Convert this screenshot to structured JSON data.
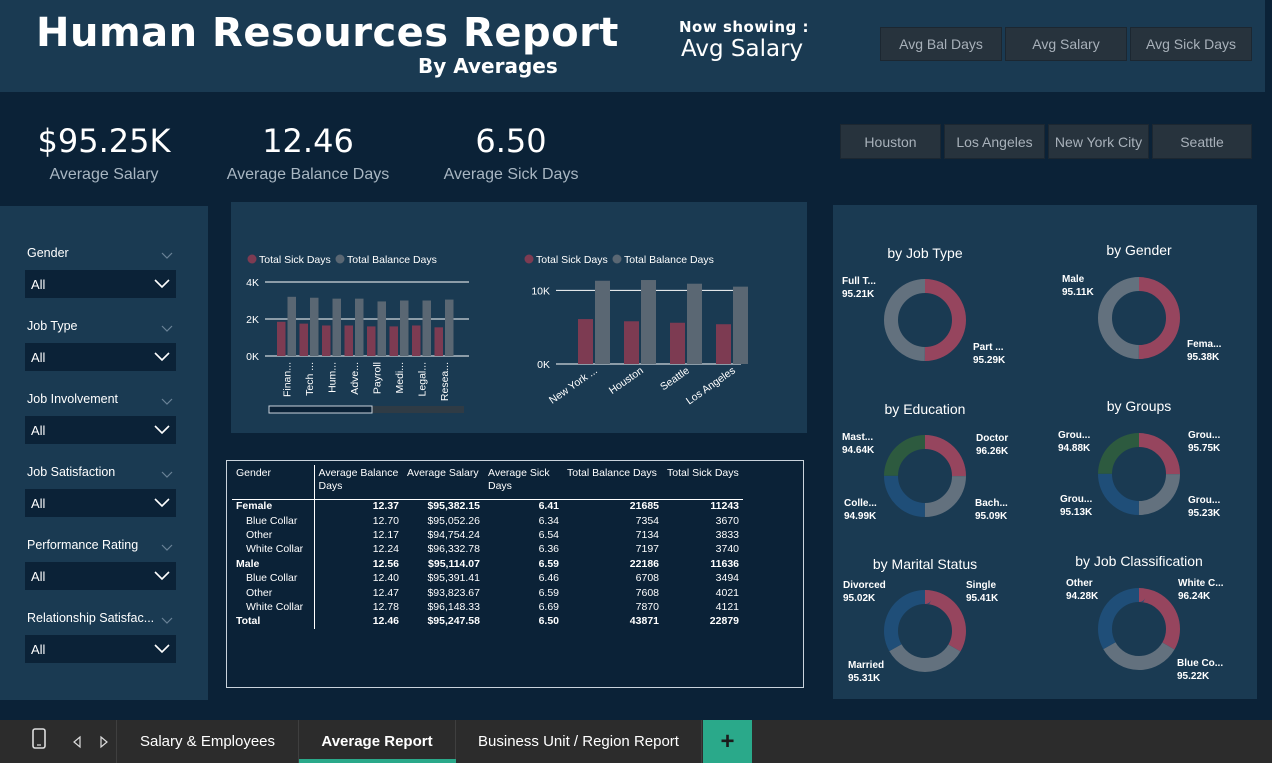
{
  "header": {
    "title": "Human Resources Report",
    "subtitle": "By Averages",
    "now_label": "Now showing :",
    "now_value": "Avg Salary",
    "metric_buttons": [
      "Avg Bal Days",
      "Avg Salary",
      "Avg Sick Days"
    ]
  },
  "kpis": [
    {
      "value": "$95.25K",
      "label": "Average Salary"
    },
    {
      "value": "12.46",
      "label": "Average Balance Days"
    },
    {
      "value": "6.50",
      "label": "Average Sick Days"
    }
  ],
  "city_buttons": [
    "Houston",
    "Los Angeles",
    "New York City",
    "Seattle"
  ],
  "filters": [
    {
      "label": "Gender",
      "value": "All"
    },
    {
      "label": "Job Type",
      "value": "All"
    },
    {
      "label": "Job Involvement",
      "value": "All"
    },
    {
      "label": "Job Satisfaction",
      "value": "All"
    },
    {
      "label": "Performance Rating",
      "value": "All"
    },
    {
      "label": "Relationship Satisfac...",
      "value": "All"
    }
  ],
  "colors": {
    "sick": "#7d3b52",
    "balance": "#5a6773",
    "ring_a": "#96455e",
    "ring_b": "#63717e",
    "ring_c": "#1f4e78",
    "ring_d": "#2d5a3f"
  },
  "chart_data": [
    {
      "type": "bar",
      "legend": [
        "Total Sick Days",
        "Total Balance Days"
      ],
      "categories": [
        "Finan...",
        "Tech ...",
        "Hum...",
        "Adve...",
        "Payroll",
        "Medi...",
        "Legal...",
        "Resea..."
      ],
      "series": [
        {
          "name": "Total Sick Days",
          "values": [
            1850,
            1750,
            1650,
            1650,
            1600,
            1600,
            1650,
            1550
          ]
        },
        {
          "name": "Total Balance Days",
          "values": [
            3200,
            3150,
            3100,
            3100,
            2950,
            3000,
            3000,
            3050
          ]
        }
      ],
      "ticks": [
        "0K",
        "2K",
        "4K"
      ],
      "ylim": [
        0,
        4000
      ]
    },
    {
      "type": "bar",
      "legend": [
        "Total Sick Days",
        "Total Balance Days"
      ],
      "categories": [
        "New York ...",
        "Houston",
        "Seattle",
        "Los Angeles"
      ],
      "series": [
        {
          "name": "Total Sick Days",
          "values": [
            6100,
            5800,
            5600,
            5400
          ]
        },
        {
          "name": "Total Balance Days",
          "values": [
            11300,
            11400,
            10900,
            10500
          ]
        }
      ],
      "ticks": [
        "0K",
        "10K"
      ],
      "ylim": [
        0,
        12000
      ]
    }
  ],
  "donuts": [
    {
      "title": "by Job Type",
      "slices": [
        {
          "label": "Full T...",
          "value": "95.21K",
          "share": 0.5,
          "color": "ring_b"
        },
        {
          "label": "Part ...",
          "value": "95.29K",
          "share": 0.5,
          "color": "ring_a"
        }
      ]
    },
    {
      "title": "by Gender",
      "slices": [
        {
          "label": "Male",
          "value": "95.11K",
          "share": 0.5,
          "color": "ring_b"
        },
        {
          "label": "Fema...",
          "value": "95.38K",
          "share": 0.5,
          "color": "ring_a"
        }
      ]
    },
    {
      "title": "by Education",
      "slices": [
        {
          "label": "Mast...",
          "value": "94.64K",
          "share": 0.25,
          "color": "ring_d"
        },
        {
          "label": "Doctor",
          "value": "96.26K",
          "share": 0.25,
          "color": "ring_a"
        },
        {
          "label": "Colle...",
          "value": "94.99K",
          "share": 0.25,
          "color": "ring_c"
        },
        {
          "label": "Bach...",
          "value": "95.09K",
          "share": 0.25,
          "color": "ring_b"
        }
      ]
    },
    {
      "title": "by Groups",
      "slices": [
        {
          "label": "Grou...",
          "value": "94.88K",
          "share": 0.25,
          "color": "ring_d"
        },
        {
          "label": "Grou...",
          "value": "95.75K",
          "share": 0.25,
          "color": "ring_a"
        },
        {
          "label": "Grou...",
          "value": "95.13K",
          "share": 0.25,
          "color": "ring_c"
        },
        {
          "label": "Grou...",
          "value": "95.23K",
          "share": 0.25,
          "color": "ring_b"
        }
      ]
    },
    {
      "title": "by Marital Status",
      "slices": [
        {
          "label": "Divorced",
          "value": "95.02K",
          "share": 0.333,
          "color": "ring_c"
        },
        {
          "label": "Single",
          "value": "95.41K",
          "share": 0.333,
          "color": "ring_a"
        },
        {
          "label": "Married",
          "value": "95.31K",
          "share": 0.334,
          "color": "ring_b"
        }
      ]
    },
    {
      "title": "by Job Classification",
      "slices": [
        {
          "label": "Other",
          "value": "94.28K",
          "share": 0.333,
          "color": "ring_c"
        },
        {
          "label": "White C...",
          "value": "96.24K",
          "share": 0.333,
          "color": "ring_a"
        },
        {
          "label": "Blue Co...",
          "value": "95.22K",
          "share": 0.334,
          "color": "ring_b"
        }
      ]
    }
  ],
  "table": {
    "headers": [
      "Gender",
      "Average Balance Days",
      "Average Salary",
      "Average Sick Days",
      "Total Balance Days",
      "Total Sick Days"
    ],
    "rows": [
      {
        "bold": true,
        "cells": [
          "Female",
          "12.37",
          "$95,382.15",
          "6.41",
          "21685",
          "11243"
        ]
      },
      {
        "bold": false,
        "cells": [
          "Blue Collar",
          "12.70",
          "$95,052.26",
          "6.34",
          "7354",
          "3670"
        ]
      },
      {
        "bold": false,
        "cells": [
          "Other",
          "12.17",
          "$94,754.24",
          "6.54",
          "7134",
          "3833"
        ]
      },
      {
        "bold": false,
        "cells": [
          "White Collar",
          "12.24",
          "$96,332.78",
          "6.36",
          "7197",
          "3740"
        ]
      },
      {
        "bold": true,
        "cells": [
          "Male",
          "12.56",
          "$95,114.07",
          "6.59",
          "22186",
          "11636"
        ]
      },
      {
        "bold": false,
        "cells": [
          "Blue Collar",
          "12.40",
          "$95,391.41",
          "6.46",
          "6708",
          "3494"
        ]
      },
      {
        "bold": false,
        "cells": [
          "Other",
          "12.47",
          "$93,823.67",
          "6.59",
          "7608",
          "4021"
        ]
      },
      {
        "bold": false,
        "cells": [
          "White Collar",
          "12.78",
          "$96,148.33",
          "6.69",
          "7870",
          "4121"
        ]
      },
      {
        "bold": true,
        "cells": [
          "Total",
          "12.46",
          "$95,247.58",
          "6.50",
          "43871",
          "22879"
        ]
      }
    ]
  },
  "tabs": [
    {
      "label": "Salary & Employees",
      "active": false
    },
    {
      "label": "Average Report",
      "active": true
    },
    {
      "label": "Business Unit / Region Report",
      "active": false
    }
  ],
  "add_tab": "+",
  "accent": "#2aa98a"
}
